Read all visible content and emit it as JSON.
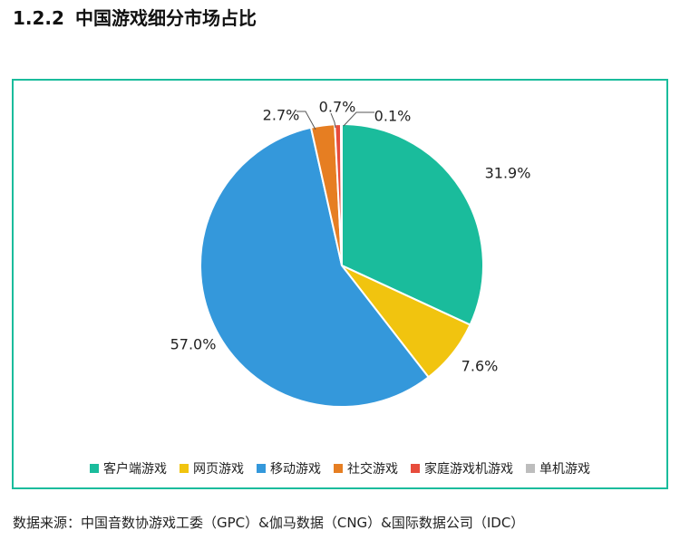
{
  "heading": {
    "number": "1.2.2",
    "title": "中国游戏细分市场占比"
  },
  "source": "数据来源：中国音数协游戏工委（GPC）&伽马数据（CNG）&国际数据公司（IDC）",
  "colors": {
    "frame": "#1abc9c"
  },
  "chart_data": {
    "type": "pie",
    "title": "",
    "start_angle_deg": 0,
    "direction": "clockwise",
    "legend_position": "bottom",
    "slices": [
      {
        "name": "客户端游戏",
        "value": 31.9,
        "label": "31.9%",
        "color": "#1abc9c"
      },
      {
        "name": "网页游戏",
        "value": 7.6,
        "label": "7.6%",
        "color": "#f1c40f"
      },
      {
        "name": "移动游戏",
        "value": 57.0,
        "label": "57.0%",
        "color": "#3498db"
      },
      {
        "name": "社交游戏",
        "value": 2.7,
        "label": "2.7%",
        "color": "#e67e22"
      },
      {
        "name": "家庭游戏机游戏",
        "value": 0.7,
        "label": "0.7%",
        "color": "#e74c3c"
      },
      {
        "name": "单机游戏",
        "value": 0.1,
        "label": "0.1%",
        "color": "#bdbdbd"
      }
    ]
  }
}
